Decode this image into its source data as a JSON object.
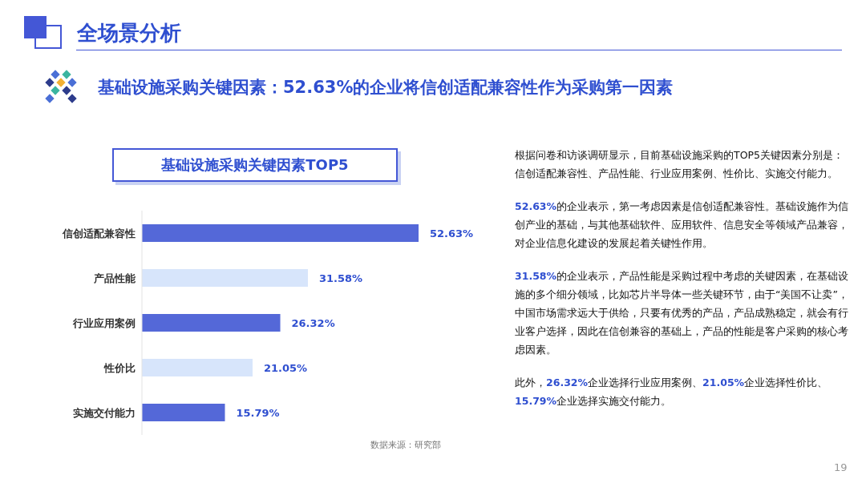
{
  "chart_data": {
    "type": "bar",
    "orientation": "horizontal",
    "title": "基础设施采购关键因素TOP5",
    "subtitle": "基础设施采购关键因素：52.63%的企业将信创适配兼容性作为采购第一因素",
    "categories": [
      "信创适配兼容性",
      "产品性能",
      "行业应用案例",
      "性价比",
      "实施交付能力"
    ],
    "values": [
      52.63,
      31.58,
      26.32,
      21.05,
      15.79
    ],
    "value_labels": [
      "52.63%",
      "31.58%",
      "26.32%",
      "21.05%",
      "15.79%"
    ],
    "colors": [
      "#5468d8",
      "#d7e5fb",
      "#5468d8",
      "#d7e5fb",
      "#5468d8"
    ],
    "grid": false,
    "legend": false,
    "annotations": [
      "全场景分析",
      "根据问卷和访谈调研显示，目前基础设施采购的TOP5关键因素分别是：信创适配兼容性、产品性能、行业应用案例、性价比、实施交付能力。",
      "52.63%的企业表示，第一考虑因素是信创适配兼容性。基础设施作为信创产业的基础，与其他基础软件、应用软件、信息安全等领域产品兼容，对企业信息化建设的发展起着关键性作用。",
      "31.58%的企业表示，产品性能是采购过程中考虑的关键因素，在基础设施的多个细分领域，比如芯片半导体一些关键环节，由于“美国不让卖”，中国市场需求远大于供给，只要有优秀的产品，产品成熟稳定，就会有行业客户选择，因此在信创兼容的基础上，产品的性能是客户采购的核心考虑因素。",
      "此外，26.32%企业选择行业应用案例、21.05%企业选择性价比、15.79%企业选择实施交付能力。",
      "数据来源：研究部",
      "19"
    ]
  }
}
